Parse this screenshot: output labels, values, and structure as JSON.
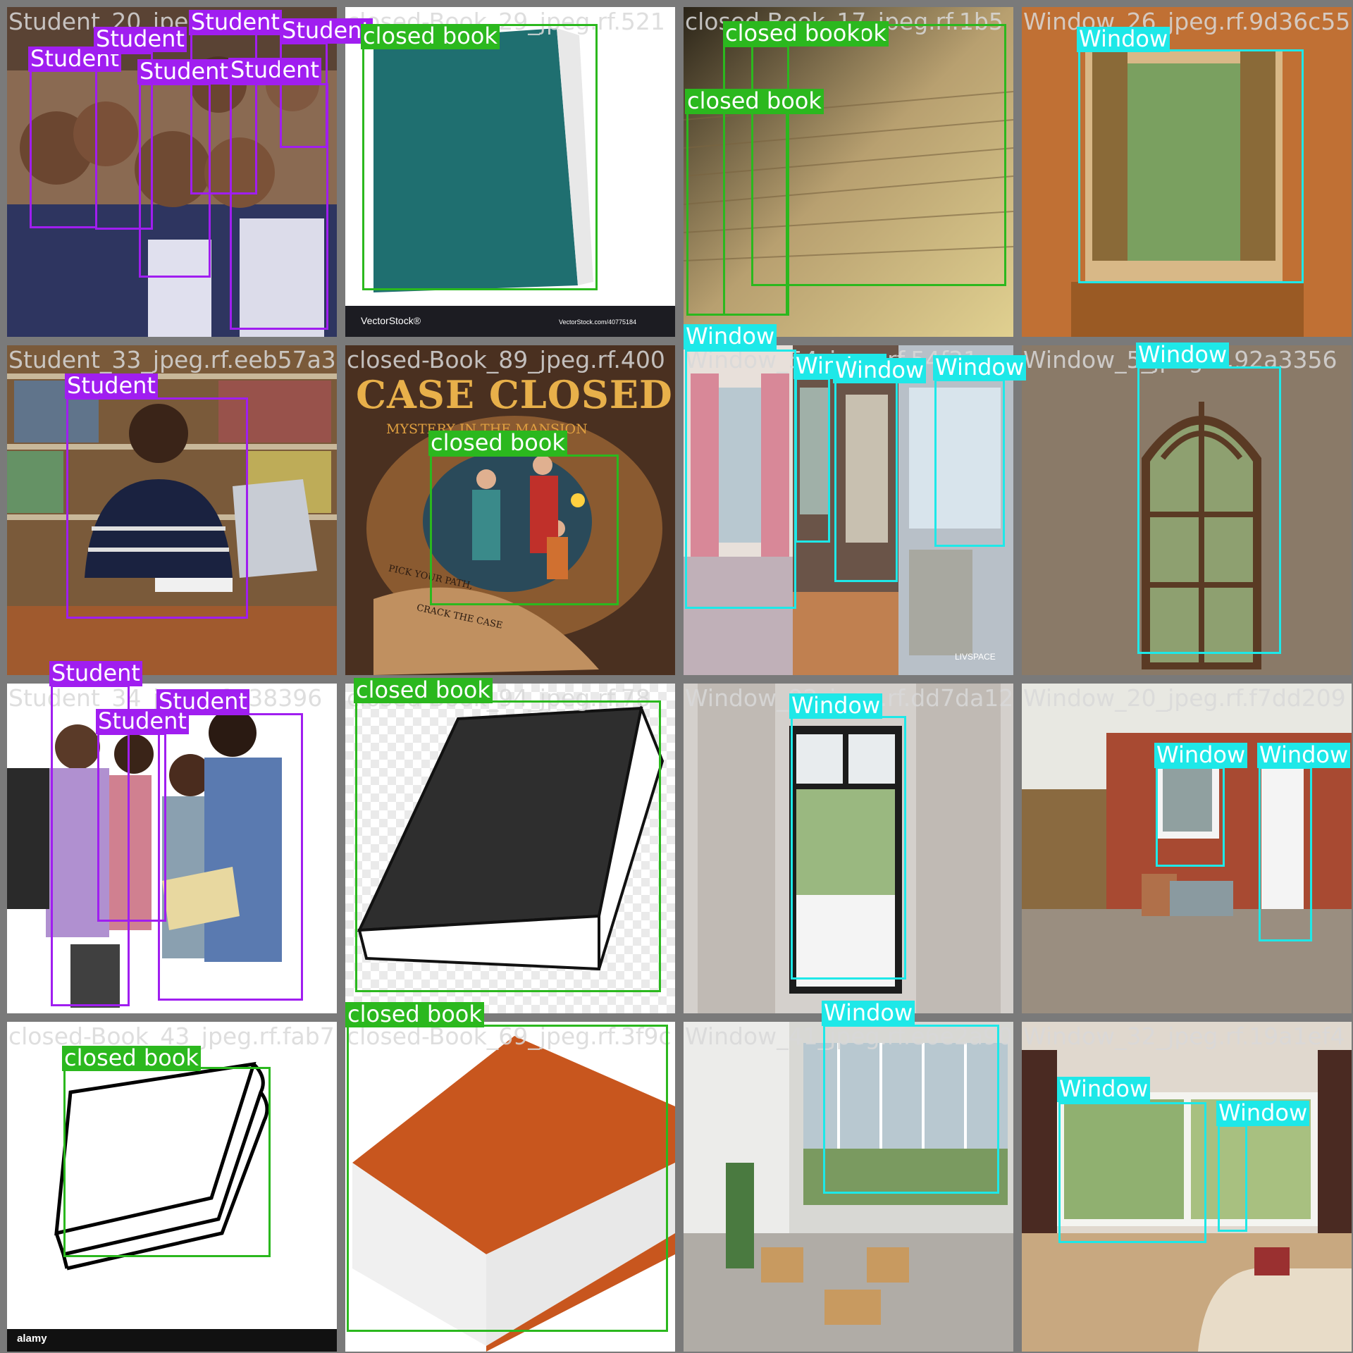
{
  "colors": {
    "Student": "#a01ef0",
    "closed book": "#2bb81e",
    "Window": "#1ee8e8",
    "frame": "#7a7a7a",
    "filename_text": "#d9d9d9"
  },
  "tiles": [
    {
      "filename": "Student_20_jpeg.rf.",
      "scene": "students",
      "boxes": [
        {
          "label": "Student"
        },
        {
          "label": "Student"
        },
        {
          "label": "Student"
        },
        {
          "label": "Student"
        },
        {
          "label": "Student"
        },
        {
          "label": "Student"
        }
      ]
    },
    {
      "filename": "closed-Book_29_jpeg.rf.521",
      "scene": "teal-book",
      "watermark_left": "VectorStock®",
      "watermark_right": "VectorStock.com/40775184",
      "boxes": [
        {
          "label": "closed book"
        }
      ]
    },
    {
      "filename": "closed-Book_17_jpeg.rf.1b5",
      "scene": "book-pages",
      "boxes": [
        {
          "label": "closed book"
        },
        {
          "label": "closed book"
        },
        {
          "label": "closed book"
        }
      ]
    },
    {
      "filename": "Window_26_jpeg.rf.9d36c55",
      "scene": "window-curtains",
      "boxes": [
        {
          "label": "Window"
        }
      ]
    },
    {
      "filename": "Student_33_jpeg.rf.eeb57a3",
      "scene": "library-student",
      "boxes": [
        {
          "label": "Student"
        }
      ]
    },
    {
      "filename": "closed-Book_89_jpeg.rf.400",
      "scene": "case-closed",
      "cover_title": "CASE CLOSED",
      "cover_subtitle": "MYSTERY IN THE MANSION",
      "cover_line1": "PICK YOUR PATH,",
      "cover_line2": "CRACK THE CASE",
      "boxes": [
        {
          "label": "closed book"
        }
      ]
    },
    {
      "filename": "Window_54_jpeg.rf.54f31",
      "scene": "windows-collage",
      "watermark": "LIVSPACE",
      "boxes": [
        {
          "label": "Window"
        },
        {
          "label": "Window"
        },
        {
          "label": "Window"
        },
        {
          "label": "Window"
        }
      ]
    },
    {
      "filename": "Window_5_jpeg.rf.92a3356",
      "scene": "arched-window",
      "boxes": [
        {
          "label": "Window"
        }
      ]
    },
    {
      "filename": "Student_34_jpeg.rf.a38396",
      "scene": "group-students",
      "boxes": [
        {
          "label": "Student"
        },
        {
          "label": "Student"
        },
        {
          "label": "Student"
        }
      ]
    },
    {
      "filename": "closed-Book_94_jpeg.rf.78",
      "scene": "black-book",
      "boxes": [
        {
          "label": "closed book"
        }
      ]
    },
    {
      "filename": "Window_92_jpeg.rf.dd7da127",
      "scene": "tall-window",
      "boxes": [
        {
          "label": "Window"
        }
      ]
    },
    {
      "filename": "Window_20_jpeg.rf.f7dd209",
      "scene": "brick-house",
      "boxes": [
        {
          "label": "Window"
        },
        {
          "label": "Window"
        }
      ]
    },
    {
      "filename": "closed-Book_43_jpeg.rf.fab7",
      "scene": "sketch-book",
      "watermark_left": "alamy",
      "boxes": [
        {
          "label": "closed book"
        }
      ]
    },
    {
      "filename": "closed-Book_69_jpeg.rf.3f9c",
      "scene": "orange-book",
      "boxes": [
        {
          "label": "closed book"
        }
      ]
    },
    {
      "filename": "Window_41_jpeg.rf.e6e2a90",
      "scene": "lobby",
      "boxes": [
        {
          "label": "Window"
        }
      ]
    },
    {
      "filename": "Window_32_jpeg.rf.19a1ef4",
      "scene": "living-room",
      "boxes": [
        {
          "label": "Window"
        },
        {
          "label": "Window"
        }
      ]
    }
  ]
}
